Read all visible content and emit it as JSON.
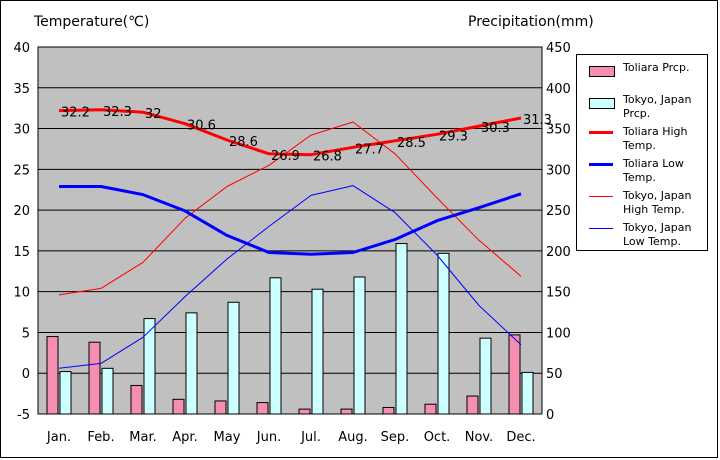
{
  "chart_data": {
    "type": "bar+line",
    "categories": [
      "Jan.",
      "Feb.",
      "Mar.",
      "Apr.",
      "May",
      "Jun.",
      "Jul.",
      "Aug.",
      "Sep.",
      "Oct.",
      "Nov.",
      "Dec."
    ],
    "y_left": {
      "label": "Temperature(℃)",
      "range": [
        -5,
        40
      ],
      "ticks": [
        -5,
        0,
        5,
        10,
        15,
        20,
        25,
        30,
        35,
        40
      ]
    },
    "y_right": {
      "label": "Precipitation(mm)",
      "range": [
        0,
        450
      ],
      "ticks": [
        0,
        50,
        100,
        150,
        200,
        250,
        300,
        350,
        400,
        450
      ]
    },
    "grid": true,
    "legend_position": "right",
    "bars": [
      {
        "name": "Toliara Prcp.",
        "axis": "right",
        "color": "#f48fb1",
        "values": [
          95,
          88,
          35,
          18,
          16,
          14,
          6,
          6,
          8,
          12,
          22,
          97
        ]
      },
      {
        "name": "Tokyo, Japan Prcp.",
        "axis": "right",
        "color": "#ccffff",
        "values": [
          52,
          56,
          117,
          124,
          137,
          167,
          153,
          168,
          209,
          197,
          93,
          51
        ]
      }
    ],
    "lines": [
      {
        "name": "Toliara High Temp.",
        "axis": "left",
        "color": "#ff0000",
        "width": 3,
        "values": [
          32.2,
          32.3,
          32,
          30.6,
          28.6,
          26.9,
          26.8,
          27.7,
          28.5,
          29.3,
          30.3,
          31.3
        ],
        "labels": [
          "32.2",
          "32.3",
          "32",
          "30.6",
          "28.6",
          "26.9",
          "26.8",
          "27.7",
          "28.5",
          "29.3",
          "30.3",
          "31.3"
        ]
      },
      {
        "name": "Toliara Low Temp.",
        "axis": "left",
        "color": "#0000ff",
        "width": 3,
        "values": [
          22.9,
          22.9,
          21.9,
          19.9,
          16.9,
          14.8,
          14.6,
          14.8,
          16.4,
          18.7,
          20.3,
          22.0
        ]
      },
      {
        "name": "Tokyo, Japan High Temp.",
        "axis": "left",
        "color": "#ff0000",
        "width": 1,
        "values": [
          9.6,
          10.4,
          13.6,
          19.0,
          22.9,
          25.5,
          29.2,
          30.8,
          26.9,
          21.5,
          16.3,
          11.9
        ]
      },
      {
        "name": "Tokyo, Japan Low Temp.",
        "axis": "left",
        "color": "#0000ff",
        "width": 1,
        "values": [
          0.6,
          1.2,
          4.4,
          9.4,
          14.0,
          18.0,
          21.8,
          23.0,
          19.7,
          14.5,
          8.3,
          3.5
        ]
      }
    ]
  }
}
